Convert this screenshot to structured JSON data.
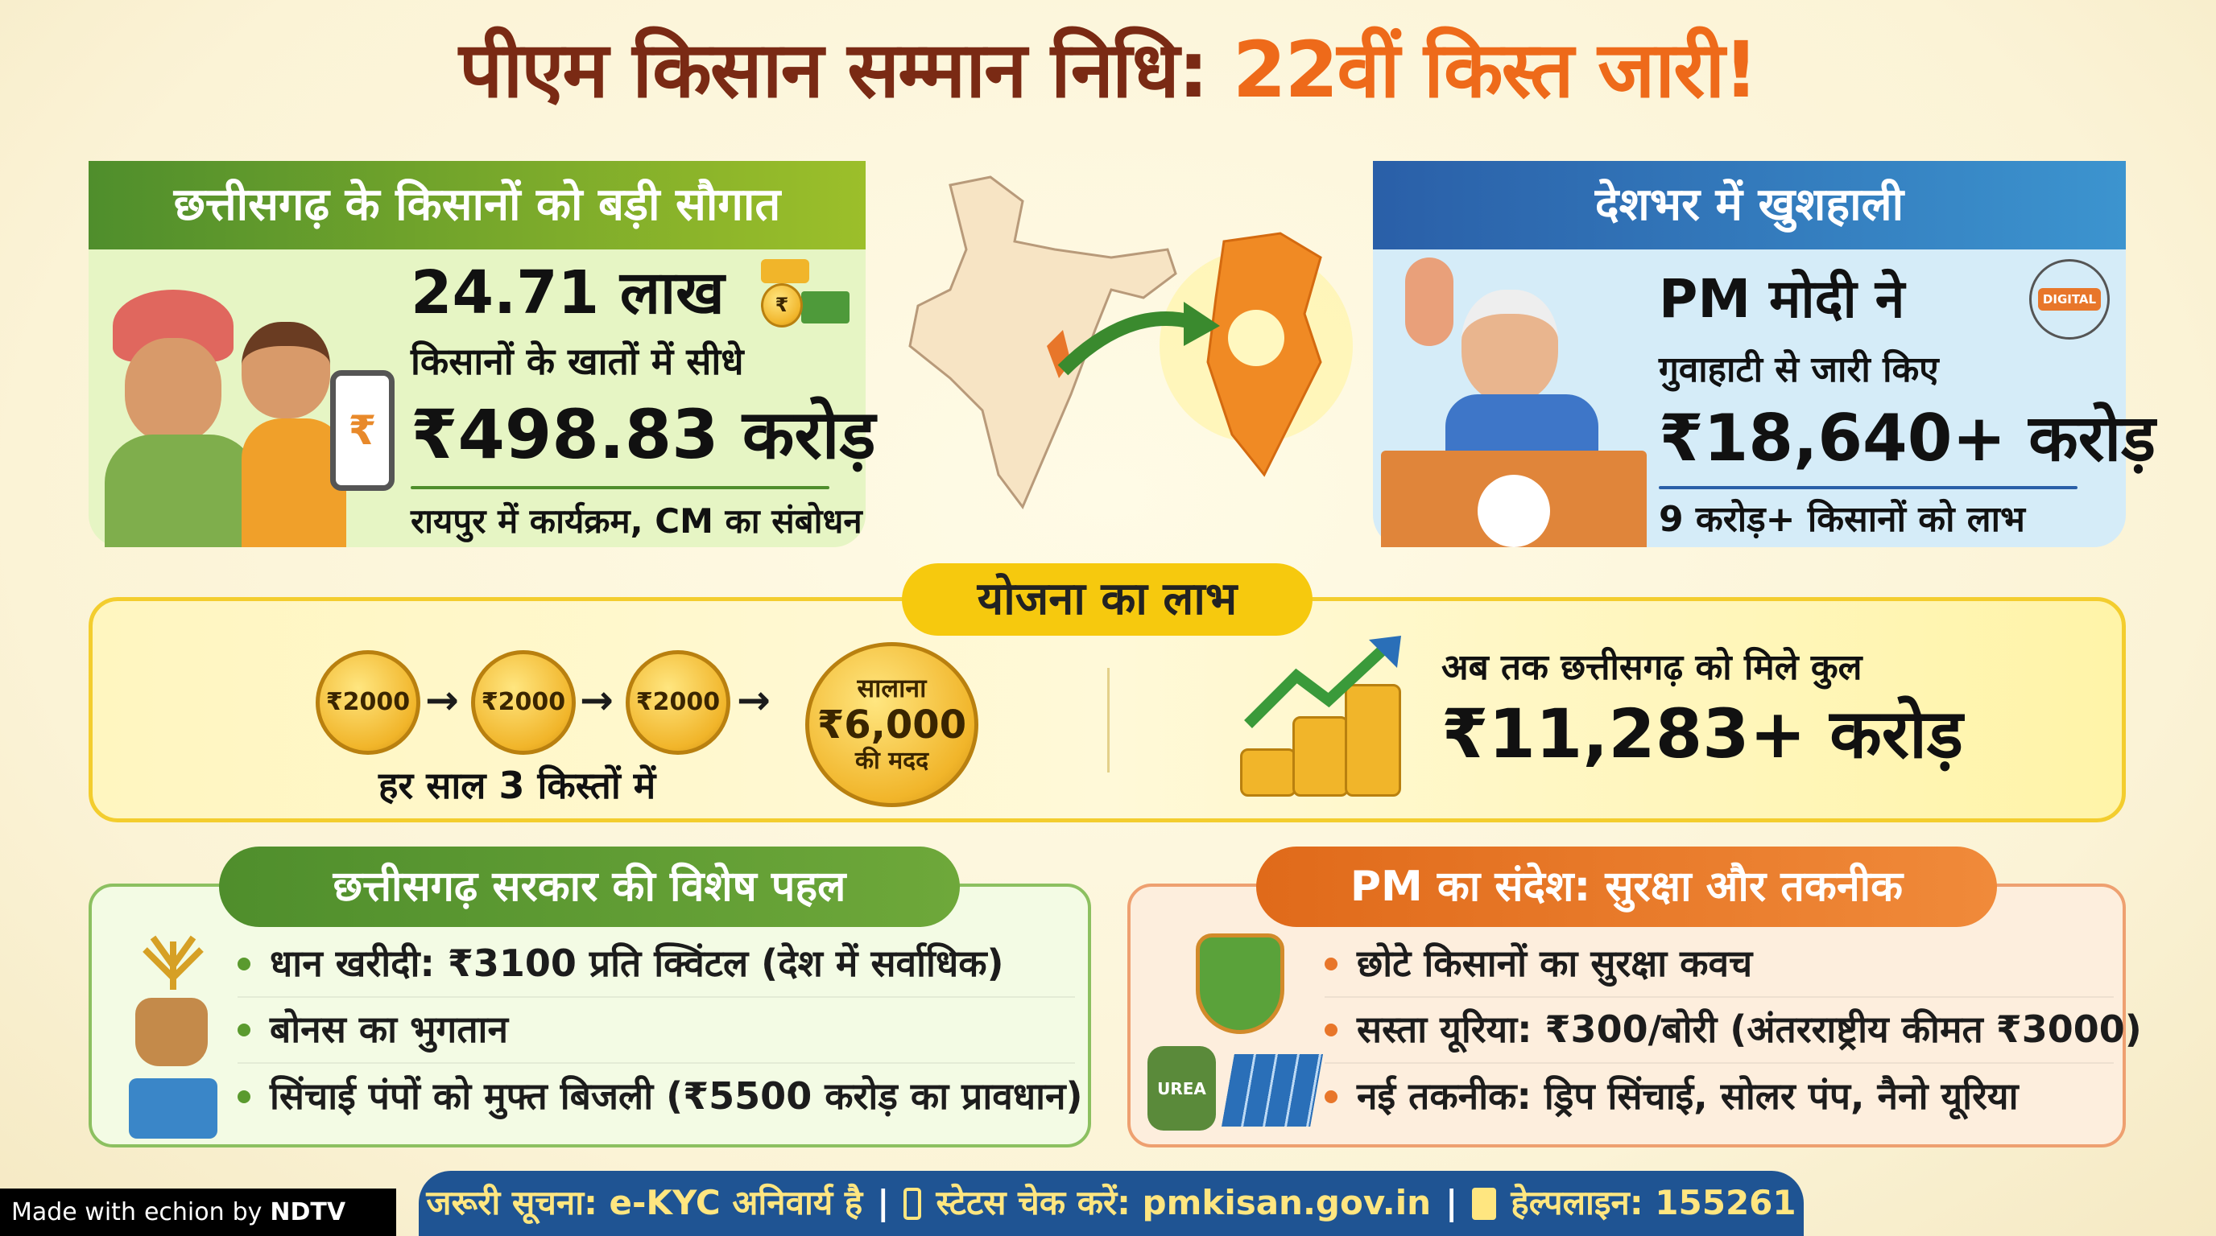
{
  "title": {
    "part1": "पीएम किसान सम्मान निधि:",
    "part2": "22वीं किस्त जारी!"
  },
  "left_panel": {
    "header": "छत्तीसगढ़ के किसानों को बड़ी सौगात",
    "count": "24.71 लाख",
    "line": "किसानों के खातों में सीधे",
    "amount": "₹498.83 करोड़",
    "footer": "रायपुर में कार्यक्रम, CM का संबोधन",
    "phone_symbol": "₹",
    "bag_symbol": "₹"
  },
  "right_panel": {
    "header": "देशभर में खुशहाली",
    "line1": "PM मोदी ने",
    "line2": "गुवाहाटी से जारी किए",
    "amount": "₹18,640+ करोड़",
    "footer": "9 करोड़+ किसानों को लाभ",
    "digital_label": "DIGITAL"
  },
  "benefits": {
    "label": "योजना का लाभ",
    "installments": [
      "₹2000",
      "₹2000",
      "₹2000"
    ],
    "annual_top": "सालाना",
    "annual_amount": "₹6,000",
    "annual_bottom": "की मदद",
    "caption": "हर साल 3 किस्तों में",
    "total_label": "अब तक छत्तीसगढ़ को मिले कुल",
    "total_amount": "₹11,283+ करोड़"
  },
  "state_initiatives": {
    "header": "छत्तीसगढ़ सरकार की विशेष पहल",
    "items": [
      "धान खरीदी: ₹3100 प्रति क्विंटल (देश में सर्वाधिक)",
      "बोनस का भुगतान",
      "सिंचाई पंपों को मुफ्त बिजली (₹5500 करोड़ का प्रावधान)"
    ]
  },
  "pm_message": {
    "header": "PM का संदेश: सुरक्षा और तकनीक",
    "items": [
      "छोटे किसानों का सुरक्षा कवच",
      "सस्ता यूरिया: ₹300/बोरी (अंतरराष्ट्रीय कीमत ₹3000)",
      "नई तकनीक: ड्रिप सिंचाई, सोलर पंप, नैनो यूरिया"
    ],
    "urea_label": "UREA"
  },
  "footer": {
    "notice": "जरूरी सूचना: e-KYC अनिवार्य है",
    "status": "स्टेटस चेक करें: pmkisan.gov.in",
    "helpline": "हेल्पलाइन: 155261",
    "divider": "|"
  },
  "badge": {
    "made_with": "Made with",
    "echion": "echion",
    "by": "by",
    "ndtv": "NDTV"
  },
  "colors": {
    "green": "#5a9a2e",
    "blue": "#2a6fb8",
    "orange": "#e8762a",
    "yellow": "#f6c90e",
    "footer_blue": "#1f5493",
    "footer_text": "#ffe680"
  }
}
